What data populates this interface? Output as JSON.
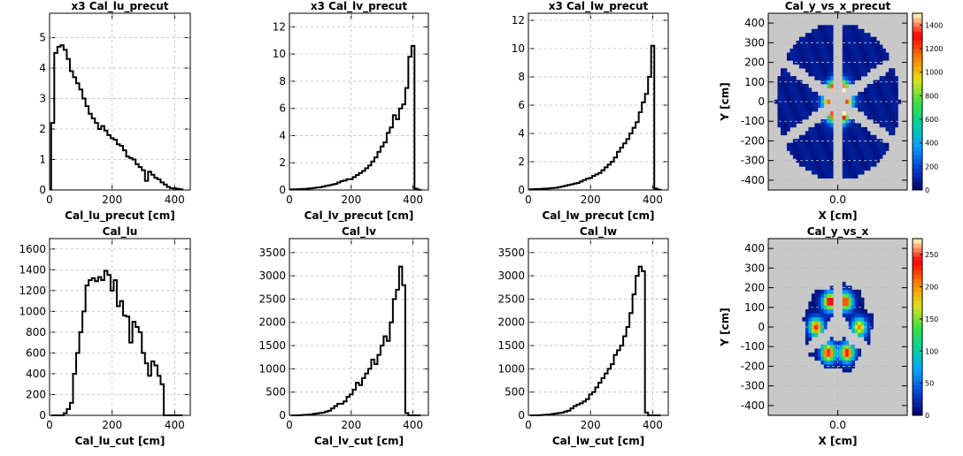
{
  "colors": {
    "hist_line": "#000000",
    "grid": "#bbbbbb",
    "map_background": "#c8c8c8",
    "colormap": [
      "#000064",
      "#0040d0",
      "#00a0ff",
      "#00d0a0",
      "#40e040",
      "#e0e020",
      "#ff8000",
      "#ff0000",
      "#ffffc0"
    ]
  },
  "chart_data": [
    {
      "type": "histogram",
      "title": "x3  Cal_lu_precut",
      "xlabel": "Cal_lu_precut [cm]",
      "ylabel": "",
      "xlim": [
        0,
        450
      ],
      "ylim": [
        0,
        5.8
      ],
      "xticks": [
        0,
        200,
        400
      ],
      "xtick_labels": [
        "0",
        "200",
        "400"
      ],
      "yticks": [
        0,
        1,
        2,
        3,
        4,
        5
      ],
      "ytick_labels": [
        "0",
        "1",
        "2",
        "3",
        "4",
        "5"
      ],
      "grid": true,
      "grid_y": [
        1,
        2,
        3,
        4,
        5
      ],
      "x": [
        10,
        20,
        30,
        40,
        50,
        60,
        70,
        80,
        90,
        100,
        110,
        120,
        130,
        140,
        150,
        160,
        170,
        180,
        190,
        200,
        210,
        220,
        230,
        240,
        250,
        260,
        270,
        280,
        290,
        300,
        310,
        320,
        330,
        340,
        350,
        360,
        370,
        380,
        390,
        400,
        410,
        420
      ],
      "values": [
        2.2,
        4.5,
        4.7,
        4.75,
        4.6,
        4.3,
        3.9,
        3.7,
        3.5,
        3.3,
        3.0,
        2.75,
        2.5,
        2.35,
        2.2,
        2.0,
        2.1,
        1.95,
        1.8,
        1.7,
        1.65,
        1.5,
        1.45,
        1.3,
        1.1,
        1.05,
        1.0,
        0.85,
        0.75,
        0.65,
        0.3,
        0.6,
        0.5,
        0.4,
        0.35,
        0.25,
        0.18,
        0.1,
        0.06,
        0.05,
        0.04,
        0.02
      ]
    },
    {
      "type": "histogram",
      "title": "x3  Cal_lv_precut",
      "xlabel": "Cal_lv_precut [cm]",
      "ylabel": "",
      "xlim": [
        0,
        450
      ],
      "ylim": [
        0,
        13
      ],
      "xticks": [
        0,
        200,
        400
      ],
      "xtick_labels": [
        "0",
        "200",
        "400"
      ],
      "yticks": [
        0,
        2,
        4,
        6,
        8,
        10,
        12
      ],
      "ytick_labels": [
        "0",
        "2",
        "4",
        "6",
        "8",
        "10",
        "12"
      ],
      "grid": true,
      "grid_y": [
        2,
        4,
        6,
        8,
        10,
        12
      ],
      "x": [
        10,
        20,
        30,
        40,
        50,
        60,
        70,
        80,
        90,
        100,
        110,
        120,
        130,
        140,
        150,
        160,
        170,
        180,
        190,
        200,
        210,
        220,
        230,
        240,
        250,
        260,
        270,
        280,
        290,
        300,
        310,
        320,
        330,
        340,
        350,
        360,
        370,
        380,
        390,
        400,
        410,
        420
      ],
      "values": [
        0.05,
        0.05,
        0.06,
        0.07,
        0.08,
        0.1,
        0.12,
        0.15,
        0.18,
        0.2,
        0.25,
        0.3,
        0.35,
        0.4,
        0.45,
        0.55,
        0.65,
        0.7,
        0.8,
        0.8,
        0.95,
        1.1,
        1.25,
        1.4,
        1.6,
        1.8,
        2.1,
        2.4,
        2.8,
        3.2,
        3.5,
        4.2,
        4.6,
        5.5,
        5.2,
        6.0,
        6.3,
        7.5,
        9.8,
        10.6,
        0.1,
        0.02
      ]
    },
    {
      "type": "histogram",
      "title": "x3  Cal_lw_precut",
      "xlabel": "Cal_lw_precut [cm]",
      "ylabel": "",
      "xlim": [
        0,
        450
      ],
      "ylim": [
        0,
        12.5
      ],
      "xticks": [
        0,
        200,
        400
      ],
      "xtick_labels": [
        "0",
        "200",
        "400"
      ],
      "yticks": [
        0,
        2,
        4,
        6,
        8,
        10,
        12
      ],
      "ytick_labels": [
        "0",
        "2",
        "4",
        "6",
        "8",
        "10",
        "12"
      ],
      "grid": true,
      "grid_y": [
        2,
        4,
        6,
        8,
        10,
        12
      ],
      "x": [
        10,
        20,
        30,
        40,
        50,
        60,
        70,
        80,
        90,
        100,
        110,
        120,
        130,
        140,
        150,
        160,
        170,
        180,
        190,
        200,
        210,
        220,
        230,
        240,
        250,
        260,
        270,
        280,
        290,
        300,
        310,
        320,
        330,
        340,
        350,
        360,
        370,
        380,
        390,
        400,
        410,
        420
      ],
      "values": [
        0.05,
        0.06,
        0.07,
        0.08,
        0.09,
        0.1,
        0.12,
        0.14,
        0.16,
        0.2,
        0.25,
        0.3,
        0.35,
        0.4,
        0.45,
        0.5,
        0.6,
        0.7,
        0.8,
        0.85,
        1.0,
        1.1,
        1.2,
        1.4,
        1.6,
        1.8,
        2.0,
        2.3,
        2.7,
        3.0,
        3.3,
        3.6,
        4.0,
        4.4,
        4.8,
        5.5,
        6.2,
        6.8,
        8.0,
        10.2,
        0.1,
        0.02
      ]
    },
    {
      "type": "heatmap",
      "title": "Cal_y_vs_x_precut",
      "xlabel": "X [cm]",
      "ylabel": "Y [cm]",
      "xlim": [
        -450,
        450
      ],
      "ylim": [
        -450,
        450
      ],
      "xticks": [
        0
      ],
      "xtick_labels": [
        "0.0"
      ],
      "yticks": [
        400,
        300,
        200,
        100,
        0,
        -100,
        -200,
        -300,
        -400
      ],
      "ytick_labels": [
        "400",
        "300",
        "200",
        "100",
        "0",
        "-100",
        "-200",
        "-300",
        "-400"
      ],
      "grid": true,
      "colorbar": {
        "range": [
          0,
          1500
        ],
        "ticks": [
          0,
          200,
          400,
          600,
          800,
          1000,
          1200,
          1400
        ],
        "tick_labels": [
          "0",
          "200",
          "400",
          "600",
          "800",
          "1000",
          "1200",
          "1400"
        ]
      },
      "hotspots": [
        [
          30,
          60,
          1400
        ],
        [
          -30,
          60,
          1100
        ],
        [
          60,
          0,
          900
        ],
        [
          -60,
          0,
          900
        ],
        [
          30,
          -60,
          1300
        ],
        [
          -30,
          -60,
          1000
        ],
        [
          0,
          80,
          500
        ],
        [
          0,
          -80,
          500
        ]
      ],
      "base_level": 90,
      "inner_radius": 40,
      "outer_radius": 400,
      "gap_width": 60,
      "variant": "precut"
    },
    {
      "type": "histogram",
      "title": "Cal_lu",
      "xlabel": "Cal_lu_cut [cm]",
      "ylabel": "",
      "xlim": [
        0,
        450
      ],
      "ylim": [
        0,
        1700
      ],
      "xticks": [
        0,
        200,
        400
      ],
      "xtick_labels": [
        "0",
        "200",
        "400"
      ],
      "yticks": [
        0,
        200,
        400,
        600,
        800,
        1000,
        1200,
        1400,
        1600
      ],
      "ytick_labels": [
        "0",
        "200",
        "400",
        "600",
        "800",
        "1000",
        "1200",
        "1400",
        "1600"
      ],
      "grid": true,
      "grid_y": [
        200,
        400,
        600,
        800,
        1000,
        1200,
        1400,
        1600
      ],
      "x": [
        10,
        20,
        30,
        40,
        50,
        60,
        70,
        80,
        90,
        100,
        110,
        120,
        130,
        140,
        150,
        160,
        170,
        180,
        190,
        200,
        210,
        220,
        230,
        240,
        250,
        260,
        270,
        280,
        290,
        300,
        310,
        320,
        330,
        340,
        350,
        360,
        370,
        380,
        390,
        400,
        410,
        420
      ],
      "values": [
        0,
        0,
        0,
        0,
        20,
        60,
        120,
        400,
        600,
        800,
        1000,
        1250,
        1300,
        1320,
        1290,
        1330,
        1300,
        1390,
        1350,
        1200,
        1300,
        1050,
        1100,
        960,
        950,
        700,
        900,
        850,
        800,
        600,
        500,
        380,
        520,
        480,
        380,
        300,
        0,
        0,
        0,
        0,
        0,
        0
      ]
    },
    {
      "type": "histogram",
      "title": "Cal_lv",
      "xlabel": "Cal_lv_cut [cm]",
      "ylabel": "",
      "xlim": [
        0,
        450
      ],
      "ylim": [
        0,
        3800
      ],
      "xticks": [
        0,
        200,
        400
      ],
      "xtick_labels": [
        "0",
        "200",
        "400"
      ],
      "yticks": [
        0,
        500,
        1000,
        1500,
        2000,
        2500,
        3000,
        3500
      ],
      "ytick_labels": [
        "0",
        "500",
        "1000",
        "1500",
        "2000",
        "2500",
        "3000",
        "3500"
      ],
      "grid": true,
      "grid_y": [
        500,
        1000,
        1500,
        2000,
        2500,
        3000,
        3500
      ],
      "x": [
        10,
        20,
        30,
        40,
        50,
        60,
        70,
        80,
        90,
        100,
        110,
        120,
        130,
        140,
        150,
        160,
        170,
        180,
        190,
        200,
        210,
        220,
        230,
        240,
        250,
        260,
        270,
        280,
        290,
        300,
        310,
        320,
        330,
        340,
        350,
        360,
        370,
        380,
        390,
        400,
        410,
        420
      ],
      "values": [
        0,
        0,
        0,
        5,
        10,
        15,
        20,
        30,
        40,
        50,
        60,
        80,
        100,
        150,
        200,
        250,
        250,
        300,
        400,
        450,
        550,
        700,
        650,
        800,
        900,
        1000,
        1200,
        1100,
        1300,
        1500,
        1700,
        1600,
        2000,
        2500,
        2700,
        3200,
        2800,
        50,
        0,
        0,
        0,
        0
      ]
    },
    {
      "type": "histogram",
      "title": "Cal_lw",
      "xlabel": "Cal_lw_cut [cm]",
      "ylabel": "",
      "xlim": [
        0,
        450
      ],
      "ylim": [
        0,
        3800
      ],
      "xticks": [
        0,
        200,
        400
      ],
      "xtick_labels": [
        "0",
        "200",
        "400"
      ],
      "yticks": [
        0,
        500,
        1000,
        1500,
        2000,
        2500,
        3000,
        3500
      ],
      "ytick_labels": [
        "0",
        "500",
        "1000",
        "1500",
        "2000",
        "2500",
        "3000",
        "3500"
      ],
      "grid": true,
      "grid_y": [
        500,
        1000,
        1500,
        2000,
        2500,
        3000,
        3500
      ],
      "x": [
        10,
        20,
        30,
        40,
        50,
        60,
        70,
        80,
        90,
        100,
        110,
        120,
        130,
        140,
        150,
        160,
        170,
        180,
        190,
        200,
        210,
        220,
        230,
        240,
        250,
        260,
        270,
        280,
        290,
        300,
        310,
        320,
        330,
        340,
        350,
        360,
        370,
        380,
        390,
        400,
        410,
        420
      ],
      "values": [
        0,
        0,
        0,
        5,
        10,
        15,
        20,
        30,
        40,
        50,
        60,
        80,
        100,
        150,
        200,
        230,
        260,
        300,
        350,
        450,
        500,
        600,
        700,
        800,
        900,
        1000,
        1100,
        1300,
        1400,
        1500,
        1700,
        1900,
        2200,
        2600,
        3000,
        3200,
        3100,
        60,
        0,
        0,
        0,
        0
      ]
    },
    {
      "type": "heatmap",
      "title": "Cal_y_vs_x",
      "xlabel": "X [cm]",
      "ylabel": "Y [cm]",
      "xlim": [
        -450,
        450
      ],
      "ylim": [
        -450,
        450
      ],
      "xticks": [
        0
      ],
      "xtick_labels": [
        "0.0"
      ],
      "yticks": [
        400,
        300,
        200,
        100,
        0,
        -100,
        -200,
        -300,
        -400
      ],
      "ytick_labels": [
        "400",
        "300",
        "200",
        "100",
        "0",
        "-100",
        "-200",
        "-300",
        "-400"
      ],
      "grid": true,
      "colorbar": {
        "range": [
          0,
          275
        ],
        "ticks": [
          0,
          50,
          100,
          150,
          200,
          250
        ],
        "tick_labels": [
          "0",
          "50",
          "100",
          "150",
          "200",
          "250"
        ]
      },
      "hotspots": [
        [
          -50,
          130,
          250
        ],
        [
          50,
          130,
          230
        ],
        [
          -140,
          0,
          230
        ],
        [
          140,
          0,
          200
        ],
        [
          -60,
          -130,
          250
        ],
        [
          60,
          -130,
          240
        ]
      ],
      "base_level": 12,
      "inner_radius": 70,
      "outer_radius": 260,
      "gap_width": 60,
      "variant": "cut"
    }
  ]
}
